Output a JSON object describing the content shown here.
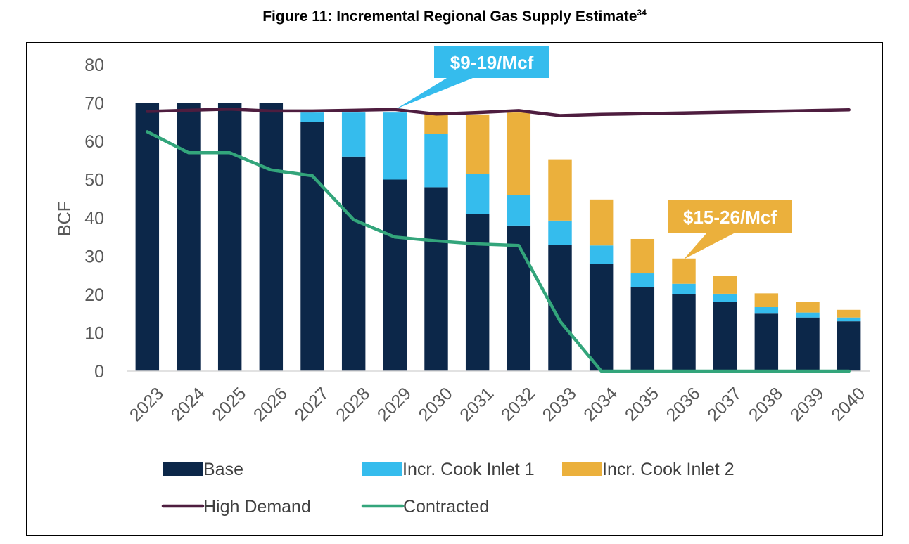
{
  "title": "Figure 11: Incremental Regional Gas Supply Estimate",
  "title_superscript": "34",
  "chart_data": {
    "type": "bar",
    "stacked": true,
    "categories": [
      "2023",
      "2024",
      "2025",
      "2026",
      "2027",
      "2028",
      "2029",
      "2030",
      "2031",
      "2032",
      "2033",
      "2034",
      "2035",
      "2036",
      "2037",
      "2038",
      "2039",
      "2040"
    ],
    "ylabel": "BCF",
    "ylim": [
      0,
      80
    ],
    "yticks": [
      0,
      10,
      20,
      30,
      40,
      50,
      60,
      70,
      80
    ],
    "grid": false,
    "legend_position": "bottom",
    "series": [
      {
        "name": "Base",
        "type": "bar",
        "color": "#0c2749",
        "values": [
          70,
          70,
          70,
          70,
          65,
          56,
          50,
          48,
          41,
          38,
          33,
          28,
          22,
          20,
          18,
          15,
          14,
          13
        ]
      },
      {
        "name": "Incr. Cook Inlet 1",
        "type": "bar",
        "color": "#35bced",
        "values": [
          0,
          0,
          0,
          0,
          2.5,
          11.5,
          17.5,
          14,
          10.5,
          8,
          6.3,
          4.8,
          3.5,
          2.8,
          2.2,
          1.7,
          1.3,
          1
        ]
      },
      {
        "name": "Incr. Cook Inlet 2",
        "type": "bar",
        "color": "#ebb03c",
        "values": [
          0,
          0,
          0,
          0,
          0,
          0,
          0,
          5.5,
          15.5,
          21.5,
          16,
          12,
          9,
          6.6,
          4.6,
          3.6,
          2.7,
          2
        ]
      },
      {
        "name": "High Demand",
        "type": "line",
        "color": "#4e1d3f",
        "values": [
          67.8,
          68.1,
          68.4,
          67.9,
          67.9,
          68.1,
          68.3,
          67.1,
          67.5,
          68,
          66.7,
          67,
          67.2,
          67.4,
          67.6,
          67.8,
          68,
          68.2
        ]
      },
      {
        "name": "Contracted",
        "type": "line",
        "color": "#33a57b",
        "values": [
          62.5,
          57,
          57,
          52.5,
          51,
          39.5,
          35,
          34,
          33.2,
          32.8,
          13,
          0,
          0,
          0,
          0,
          0,
          0,
          0
        ]
      }
    ],
    "annotations": [
      {
        "text": "$9-19/Mcf",
        "color": "#35bced",
        "points_to": "2029",
        "value": 68.3
      },
      {
        "text": "$15-26/Mcf",
        "color": "#ebb03c",
        "points_to": "2036",
        "value": 29.4
      }
    ]
  }
}
